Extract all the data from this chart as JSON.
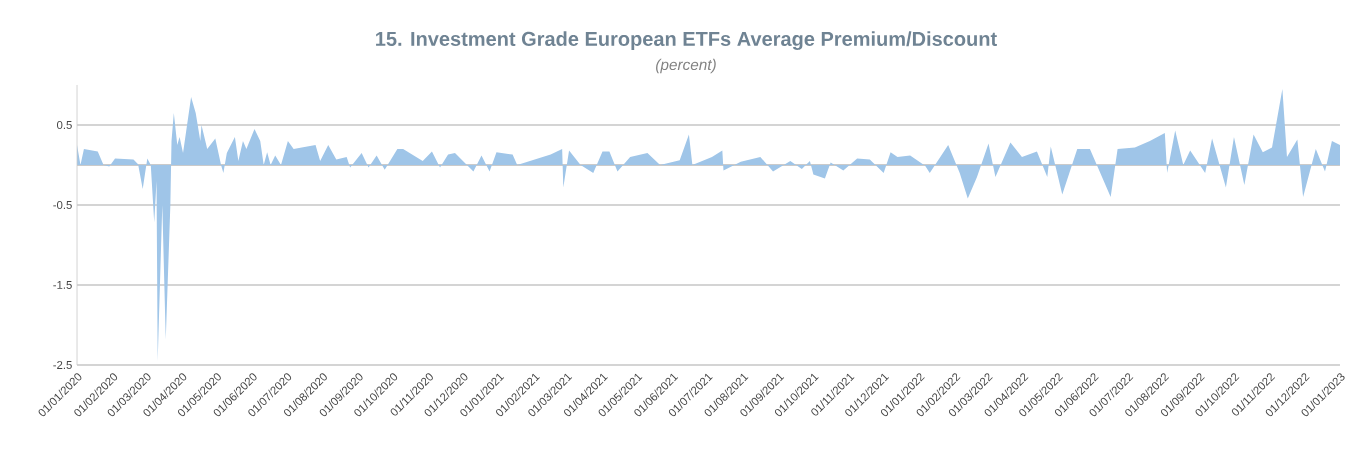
{
  "chart_data": {
    "type": "area",
    "title": "15. Investment Grade European ETFs Average Premium/Discount",
    "subtitle": "(percent)",
    "x": [
      "2020-01-01",
      "2020-01-04",
      "2020-01-07",
      "2020-01-19",
      "2020-01-24",
      "2020-01-29",
      "2020-02-03",
      "2020-02-19",
      "2020-02-23",
      "2020-02-27",
      "2020-03-02",
      "2020-03-05",
      "2020-03-08",
      "2020-03-10",
      "2020-03-11",
      "2020-03-15",
      "2020-03-18",
      "2020-03-22",
      "2020-03-23",
      "2020-03-25",
      "2020-03-28",
      "2020-03-30",
      "2020-04-02",
      "2020-04-09",
      "2020-04-13",
      "2020-04-17",
      "2020-04-18",
      "2020-04-23",
      "2020-04-30",
      "2020-05-05",
      "2020-05-07",
      "2020-05-10",
      "2020-05-17",
      "2020-05-20",
      "2020-05-24",
      "2020-05-27",
      "2020-06-03",
      "2020-06-08",
      "2020-06-11",
      "2020-06-14",
      "2020-06-17",
      "2020-06-21",
      "2020-06-26",
      "2020-07-02",
      "2020-07-07",
      "2020-07-14",
      "2020-07-26",
      "2020-07-30",
      "2020-08-06",
      "2020-08-13",
      "2020-08-22",
      "2020-08-25",
      "2020-09-04",
      "2020-09-10",
      "2020-09-17",
      "2020-09-24",
      "2020-10-05",
      "2020-10-10",
      "2020-10-27",
      "2020-11-04",
      "2020-11-11",
      "2020-11-18",
      "2020-11-24",
      "2020-12-10",
      "2020-12-17",
      "2020-12-24",
      "2020-12-30",
      "2021-01-13",
      "2021-01-17",
      "2021-02-15",
      "2021-02-25",
      "2021-02-26",
      "2021-03-03",
      "2021-03-13",
      "2021-03-24",
      "2021-04-01",
      "2021-04-07",
      "2021-04-14",
      "2021-04-25",
      "2021-05-10",
      "2021-05-21",
      "2021-06-07",
      "2021-06-15",
      "2021-06-18",
      "2021-07-05",
      "2021-07-14",
      "2021-07-15",
      "2021-07-30",
      "2021-08-16",
      "2021-08-27",
      "2021-09-11",
      "2021-09-21",
      "2021-09-28",
      "2021-10-01",
      "2021-10-11",
      "2021-10-16",
      "2021-10-27",
      "2021-11-08",
      "2021-11-19",
      "2021-12-01",
      "2021-12-07",
      "2021-12-13",
      "2021-12-24",
      "2022-01-06",
      "2022-01-10",
      "2022-01-26",
      "2022-02-05",
      "2022-02-12",
      "2022-02-20",
      "2022-03-02",
      "2022-03-08",
      "2022-03-21",
      "2022-03-31",
      "2022-04-13",
      "2022-04-22",
      "2022-04-25",
      "2022-05-05",
      "2022-05-18",
      "2022-05-29",
      "2022-06-16",
      "2022-06-22",
      "2022-07-07",
      "2022-07-20",
      "2022-08-02",
      "2022-08-04",
      "2022-08-11",
      "2022-08-18",
      "2022-08-24",
      "2022-09-06",
      "2022-09-12",
      "2022-09-24",
      "2022-10-01",
      "2022-10-10",
      "2022-10-18",
      "2022-10-26",
      "2022-11-03",
      "2022-11-12",
      "2022-11-16",
      "2022-11-25",
      "2022-11-30",
      "2022-12-11",
      "2022-12-19",
      "2022-12-25",
      "2023-01-01"
    ],
    "values": [
      0.25,
      0.0,
      0.2,
      0.17,
      0.0,
      -0.02,
      0.08,
      0.07,
      0.01,
      -0.3,
      0.08,
      0.0,
      -0.72,
      -0.2,
      -2.45,
      -0.5,
      -2.18,
      -0.5,
      0.3,
      0.65,
      0.25,
      0.35,
      0.15,
      0.85,
      0.65,
      0.3,
      0.5,
      0.2,
      0.33,
      0.0,
      -0.1,
      0.15,
      0.35,
      0.05,
      0.3,
      0.2,
      0.45,
      0.3,
      0.0,
      0.16,
      0.0,
      0.12,
      0.0,
      0.3,
      0.2,
      0.22,
      0.25,
      0.05,
      0.25,
      0.07,
      0.1,
      -0.03,
      0.15,
      -0.03,
      0.12,
      -0.06,
      0.2,
      0.2,
      0.05,
      0.17,
      -0.03,
      0.13,
      0.15,
      -0.08,
      0.12,
      -0.08,
      0.16,
      0.13,
      0.0,
      0.13,
      0.2,
      -0.28,
      0.18,
      0.0,
      -0.1,
      0.17,
      0.17,
      -0.08,
      0.1,
      0.15,
      0.0,
      0.06,
      0.38,
      0.0,
      0.1,
      0.18,
      -0.07,
      0.04,
      0.1,
      -0.08,
      0.05,
      -0.05,
      0.05,
      -0.12,
      -0.17,
      0.03,
      -0.07,
      0.08,
      0.07,
      -0.1,
      0.16,
      0.1,
      0.12,
      -0.01,
      -0.1,
      0.25,
      -0.1,
      -0.42,
      -0.15,
      0.27,
      -0.15,
      0.28,
      0.1,
      0.17,
      -0.15,
      0.23,
      -0.37,
      0.2,
      0.2,
      -0.4,
      0.2,
      0.22,
      0.3,
      0.4,
      -0.1,
      0.43,
      0.0,
      0.18,
      -0.1,
      0.33,
      -0.28,
      0.35,
      -0.25,
      0.38,
      0.16,
      0.22,
      0.95,
      0.1,
      0.32,
      -0.4,
      0.2,
      -0.08,
      0.3,
      0.25
    ],
    "color": "#9fc5e8",
    "xlim": [
      "2020-01-01",
      "2023-01-01"
    ],
    "xticks": [
      {
        "value": "2020-01-01",
        "label": "01/01/2020"
      },
      {
        "value": "2020-02-01",
        "label": "01/02/2020"
      },
      {
        "value": "2020-03-01",
        "label": "01/03/2020"
      },
      {
        "value": "2020-04-01",
        "label": "01/04/2020"
      },
      {
        "value": "2020-05-01",
        "label": "01/05/2020"
      },
      {
        "value": "2020-06-01",
        "label": "01/06/2020"
      },
      {
        "value": "2020-07-01",
        "label": "01/07/2020"
      },
      {
        "value": "2020-08-01",
        "label": "01/08/2020"
      },
      {
        "value": "2020-09-01",
        "label": "01/09/2020"
      },
      {
        "value": "2020-10-01",
        "label": "01/10/2020"
      },
      {
        "value": "2020-11-01",
        "label": "01/11/2020"
      },
      {
        "value": "2020-12-01",
        "label": "01/12/2020"
      },
      {
        "value": "2021-01-01",
        "label": "01/01/2021"
      },
      {
        "value": "2021-02-01",
        "label": "01/02/2021"
      },
      {
        "value": "2021-03-01",
        "label": "01/03/2021"
      },
      {
        "value": "2021-04-01",
        "label": "01/04/2021"
      },
      {
        "value": "2021-05-01",
        "label": "01/05/2021"
      },
      {
        "value": "2021-06-01",
        "label": "01/06/2021"
      },
      {
        "value": "2021-07-01",
        "label": "01/07/2021"
      },
      {
        "value": "2021-08-01",
        "label": "01/08/2021"
      },
      {
        "value": "2021-09-01",
        "label": "01/09/2021"
      },
      {
        "value": "2021-10-01",
        "label": "01/10/2021"
      },
      {
        "value": "2021-11-01",
        "label": "01/11/2021"
      },
      {
        "value": "2021-12-01",
        "label": "01/12/2021"
      },
      {
        "value": "2022-01-01",
        "label": "01/01/2022"
      },
      {
        "value": "2022-02-01",
        "label": "01/02/2022"
      },
      {
        "value": "2022-03-01",
        "label": "01/03/2022"
      },
      {
        "value": "2022-04-01",
        "label": "01/04/2022"
      },
      {
        "value": "2022-05-01",
        "label": "01/05/2022"
      },
      {
        "value": "2022-06-01",
        "label": "01/06/2022"
      },
      {
        "value": "2022-07-01",
        "label": "01/07/2022"
      },
      {
        "value": "2022-08-01",
        "label": "01/08/2022"
      },
      {
        "value": "2022-09-01",
        "label": "01/09/2022"
      },
      {
        "value": "2022-10-01",
        "label": "01/10/2022"
      },
      {
        "value": "2022-11-01",
        "label": "01/11/2022"
      },
      {
        "value": "2022-12-01",
        "label": "01/12/2022"
      },
      {
        "value": "2023-01-01",
        "label": "01/01/2023"
      }
    ],
    "ylim": [
      -2.5,
      1.0
    ],
    "yticks": [
      -2.5,
      -1.5,
      -0.5,
      0.5
    ],
    "grid": "y"
  }
}
